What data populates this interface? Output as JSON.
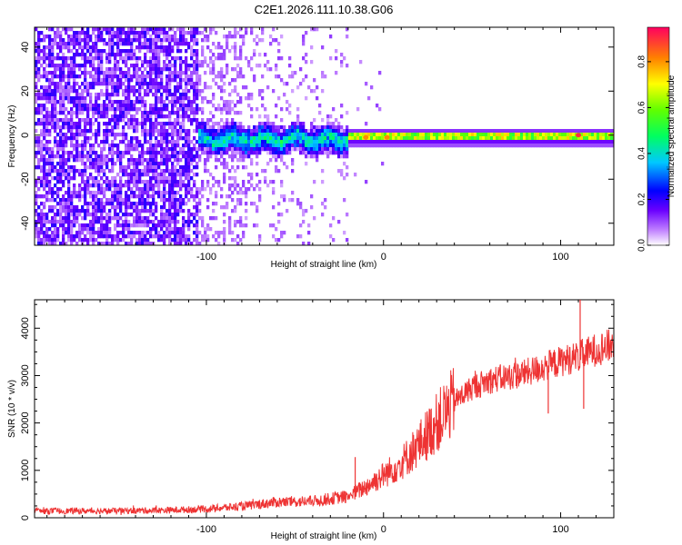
{
  "title": "C2E1.2026.111.10.38.G06",
  "chart_data": [
    {
      "type": "heatmap",
      "name": "spectrogram",
      "xlabel": "Height of straight line (km)",
      "ylabel": "Frequency (Hz)",
      "xlim": [
        -197,
        130
      ],
      "ylim": [
        -50,
        49
      ],
      "x_ticks": [
        -100,
        0,
        100
      ],
      "x_tick_labels": [
        "-100",
        "0",
        "100"
      ],
      "y_ticks": [
        -40,
        -20,
        0,
        20,
        40
      ],
      "y_tick_labels": [
        "-40",
        "-20",
        "0",
        "20",
        "40"
      ],
      "description_regions": [
        {
          "x_range": [
            -197,
            -105
          ],
          "freq_range": [
            -50,
            49
          ],
          "level": "scattered low/mid amplitude noise"
        },
        {
          "x_range": [
            -105,
            -20
          ],
          "freq_range": [
            -6,
            6
          ],
          "level": "band ~0.3-0.5"
        },
        {
          "x_range": [
            -20,
            130
          ],
          "freq_range": [
            -3,
            3
          ],
          "level": "narrow line ~0.4-0.9"
        }
      ],
      "peaks": [
        {
          "x": -10,
          "freq": -1,
          "amp": 0.85
        },
        {
          "x": 2,
          "freq": -1,
          "amp": 0.85
        },
        {
          "x": 110,
          "freq": 0,
          "amp": 0.95
        }
      ],
      "colorbar": {
        "label": "Normalized spectral amplitude",
        "range": [
          0,
          0.95
        ],
        "ticks": [
          0.0,
          0.2,
          0.4,
          0.6,
          0.8
        ],
        "tick_labels": [
          "0.0",
          "0.2",
          "0.4",
          "0.6",
          "0.8"
        ]
      }
    },
    {
      "type": "line",
      "name": "snr",
      "xlabel": "Height of straight line (km)",
      "ylabel": "SNR (10 * v/v)",
      "xlim": [
        -197,
        130
      ],
      "ylim": [
        0,
        4600
      ],
      "x_ticks": [
        -100,
        0,
        100
      ],
      "x_tick_labels": [
        "-100",
        "0",
        "100"
      ],
      "y_ticks": [
        0,
        1000,
        2000,
        3000,
        4000
      ],
      "y_tick_labels": [
        "0",
        "1000",
        "2000",
        "3000",
        "4000"
      ],
      "color": "#ee3333",
      "series_name": "SNR",
      "trend_points": [
        {
          "x": -197,
          "y": 140
        },
        {
          "x": -150,
          "y": 145
        },
        {
          "x": -120,
          "y": 160
        },
        {
          "x": -100,
          "y": 185
        },
        {
          "x": -80,
          "y": 240
        },
        {
          "x": -60,
          "y": 330
        },
        {
          "x": -40,
          "y": 350
        },
        {
          "x": -20,
          "y": 450
        },
        {
          "x": -10,
          "y": 650
        },
        {
          "x": 0,
          "y": 900
        },
        {
          "x": 10,
          "y": 1150
        },
        {
          "x": 20,
          "y": 1550
        },
        {
          "x": 30,
          "y": 2000
        },
        {
          "x": 40,
          "y": 2450
        },
        {
          "x": 50,
          "y": 2750
        },
        {
          "x": 60,
          "y": 2900
        },
        {
          "x": 80,
          "y": 3050
        },
        {
          "x": 100,
          "y": 3300
        },
        {
          "x": 110,
          "y": 3400
        },
        {
          "x": 120,
          "y": 3550
        },
        {
          "x": 130,
          "y": 3650
        }
      ],
      "spikes": [
        {
          "x": -16,
          "y": 1280
        },
        {
          "x": 93,
          "y": 2200
        },
        {
          "x": 111,
          "y": 4600
        },
        {
          "x": 113,
          "y": 2300
        }
      ]
    }
  ]
}
